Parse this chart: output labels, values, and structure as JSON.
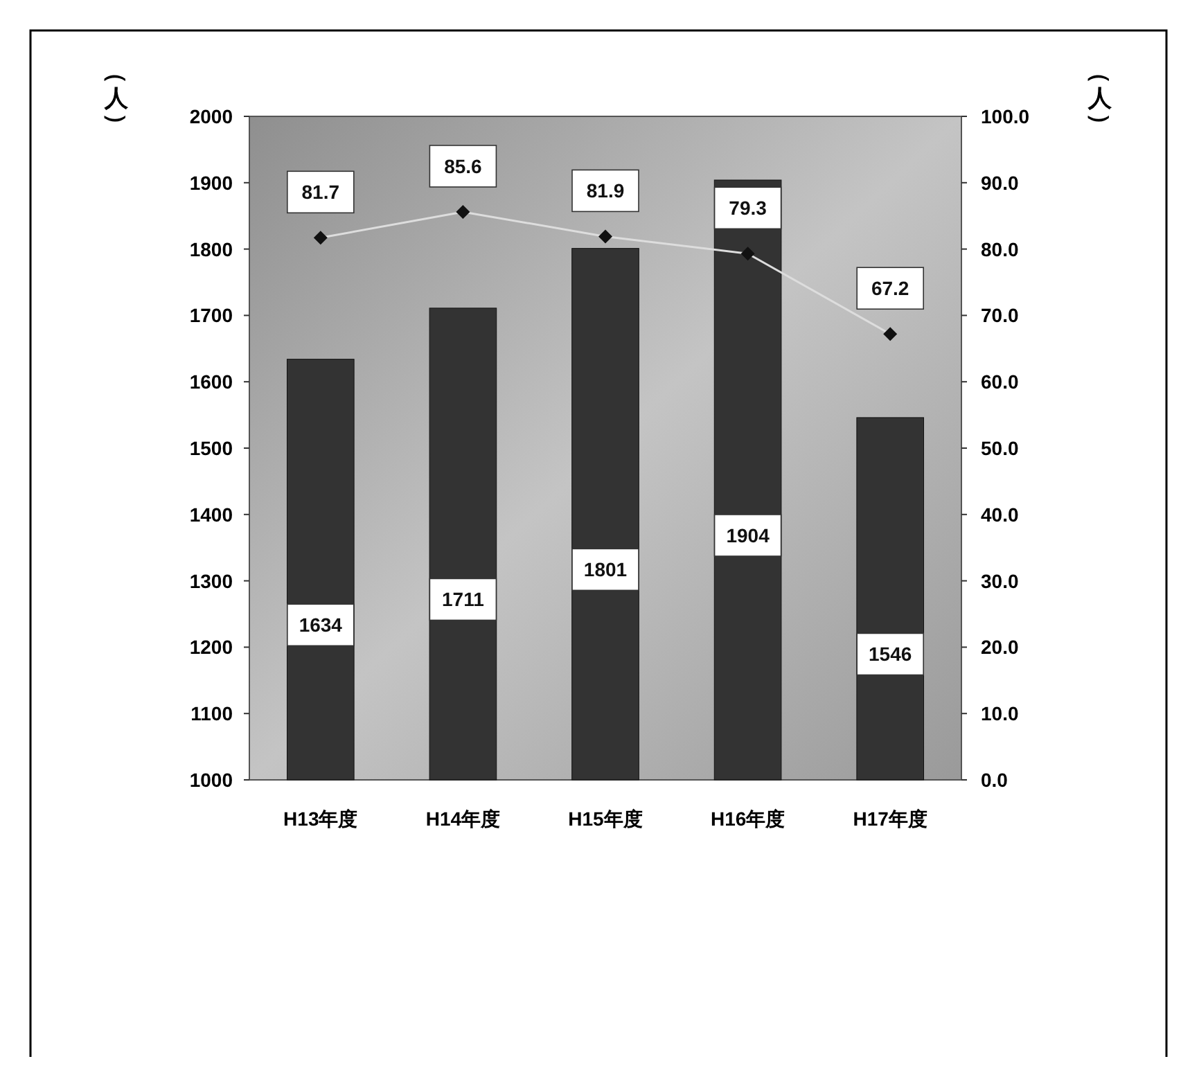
{
  "chart_data": {
    "type": "bar",
    "categories": [
      "H13年度",
      "H14年度",
      "H15年度",
      "H16年度",
      "H17年度"
    ],
    "series": [
      {
        "color": "#333333",
        "values": [
          1634,
          1711,
          1801,
          1904,
          1546
        ]
      },
      {
        "type": "line",
        "axis": "y2",
        "color": "#dddddd",
        "marker": "diamond",
        "values": [
          81.7,
          85.6,
          81.9,
          79.3,
          67.2
        ]
      }
    ],
    "ylabel": "（人）",
    "y2label": "（人）",
    "ylim": [
      1000,
      2000
    ],
    "yticks": [
      1000,
      1100,
      1200,
      1300,
      1400,
      1500,
      1600,
      1700,
      1800,
      1900,
      2000
    ],
    "y2lim": [
      0,
      100
    ],
    "y2ticks": [
      {
        "value": 0,
        "label": "0.0"
      },
      {
        "value": 10,
        "label": "10.0"
      },
      {
        "value": 20,
        "label": "20.0"
      },
      {
        "value": 30,
        "label": "30.0"
      },
      {
        "value": 40,
        "label": "40.0"
      },
      {
        "value": 50,
        "label": "50.0"
      },
      {
        "value": 60,
        "label": "60.0"
      },
      {
        "value": 70,
        "label": "70.0"
      },
      {
        "value": 80,
        "label": "80.0"
      },
      {
        "value": 90,
        "label": "90.0"
      },
      {
        "value": 100,
        "label": "100.0"
      }
    ],
    "data_labels": true,
    "grid": false
  }
}
